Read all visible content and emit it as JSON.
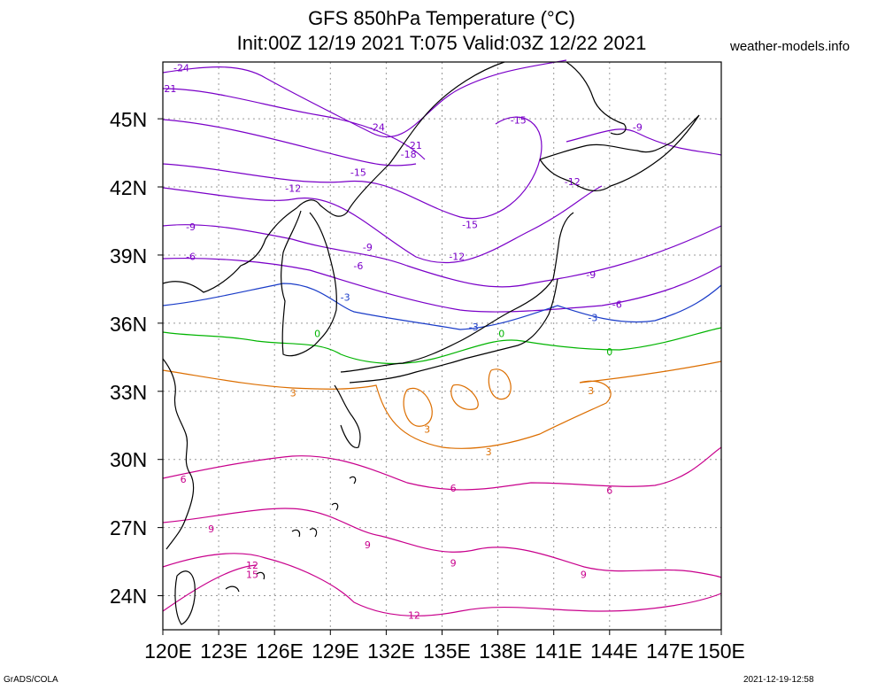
{
  "header": {
    "title_line1": "GFS 850hPa Temperature (°C)",
    "title_line2": "Init:00Z 12/19 2021 T:075 Valid:03Z 12/22 2021",
    "site": "weather-models.info"
  },
  "map": {
    "lat_labels": [
      "45N",
      "42N",
      "39N",
      "36N",
      "33N",
      "30N",
      "27N",
      "24N"
    ],
    "lon_labels": [
      "120E",
      "123E",
      "126E",
      "129E",
      "132E",
      "135E",
      "138E",
      "141E",
      "144E",
      "147E",
      "150E"
    ],
    "lat_range": [
      22.5,
      47.5
    ],
    "lon_range": [
      120,
      150
    ],
    "grid": "dotted"
  },
  "contour_labels": [
    {
      "text": "-24",
      "lon": 121.0,
      "lat": 47.2,
      "color": "#7a00c8"
    },
    {
      "text": "21",
      "lon": 120.4,
      "lat": 46.3,
      "color": "#7a00c8"
    },
    {
      "text": "-24",
      "lon": 131.5,
      "lat": 44.6,
      "color": "#7a00c8"
    },
    {
      "text": "-15",
      "lon": 139.1,
      "lat": 44.9,
      "color": "#7a00c8"
    },
    {
      "text": "-9",
      "lon": 145.5,
      "lat": 44.6,
      "color": "#7a00c8"
    },
    {
      "text": "-21",
      "lon": 133.5,
      "lat": 43.8,
      "color": "#7a00c8"
    },
    {
      "text": "-18",
      "lon": 133.2,
      "lat": 43.4,
      "color": "#7a00c8"
    },
    {
      "text": "-15",
      "lon": 130.5,
      "lat": 42.6,
      "color": "#7a00c8"
    },
    {
      "text": "-12",
      "lon": 127.0,
      "lat": 41.9,
      "color": "#7a00c8"
    },
    {
      "text": "-12",
      "lon": 142.0,
      "lat": 42.2,
      "color": "#7a00c8"
    },
    {
      "text": "-15",
      "lon": 136.5,
      "lat": 40.3,
      "color": "#7a00c8"
    },
    {
      "text": "-9",
      "lon": 121.5,
      "lat": 40.2,
      "color": "#7a00c8"
    },
    {
      "text": "-9",
      "lon": 131.0,
      "lat": 39.3,
      "color": "#7a00c8"
    },
    {
      "text": "-12",
      "lon": 135.8,
      "lat": 38.9,
      "color": "#7a00c8"
    },
    {
      "text": "-6",
      "lon": 121.5,
      "lat": 38.9,
      "color": "#7a00c8"
    },
    {
      "text": "-6",
      "lon": 130.5,
      "lat": 38.5,
      "color": "#7a00c8"
    },
    {
      "text": "-9",
      "lon": 143.0,
      "lat": 38.1,
      "color": "#7a00c8"
    },
    {
      "text": "-3",
      "lon": 129.8,
      "lat": 37.1,
      "color": "#1a3cc8"
    },
    {
      "text": "-6",
      "lon": 144.4,
      "lat": 36.8,
      "color": "#7a00c8"
    },
    {
      "text": "-3",
      "lon": 143.1,
      "lat": 36.2,
      "color": "#1a3cc8"
    },
    {
      "text": "-3",
      "lon": 136.7,
      "lat": 35.8,
      "color": "#1a3cc8"
    },
    {
      "text": "0",
      "lon": 128.3,
      "lat": 35.5,
      "color": "#00b400"
    },
    {
      "text": "0",
      "lon": 138.2,
      "lat": 35.5,
      "color": "#00b400"
    },
    {
      "text": "0",
      "lon": 144.0,
      "lat": 34.7,
      "color": "#00b400"
    },
    {
      "text": "3",
      "lon": 127.0,
      "lat": 32.9,
      "color": "#dc6e00"
    },
    {
      "text": "3",
      "lon": 143.0,
      "lat": 33.0,
      "color": "#dc6e00"
    },
    {
      "text": "3",
      "lon": 134.2,
      "lat": 31.3,
      "color": "#dc6e00"
    },
    {
      "text": "3",
      "lon": 137.5,
      "lat": 30.3,
      "color": "#dc6e00"
    },
    {
      "text": "6",
      "lon": 121.1,
      "lat": 29.1,
      "color": "#c8008c"
    },
    {
      "text": "6",
      "lon": 135.6,
      "lat": 28.7,
      "color": "#c8008c"
    },
    {
      "text": "6",
      "lon": 144.0,
      "lat": 28.6,
      "color": "#c8008c"
    },
    {
      "text": "9",
      "lon": 122.6,
      "lat": 26.9,
      "color": "#c8008c"
    },
    {
      "text": "9",
      "lon": 131.0,
      "lat": 26.2,
      "color": "#c8008c"
    },
    {
      "text": "9",
      "lon": 135.6,
      "lat": 25.4,
      "color": "#c8008c"
    },
    {
      "text": "9",
      "lon": 142.6,
      "lat": 24.9,
      "color": "#c8008c"
    },
    {
      "text": "12",
      "lon": 124.8,
      "lat": 25.3,
      "color": "#c8008c"
    },
    {
      "text": "15",
      "lon": 124.8,
      "lat": 24.9,
      "color": "#c8008c"
    },
    {
      "text": "12",
      "lon": 133.5,
      "lat": 23.1,
      "color": "#c8008c"
    }
  ],
  "footer": {
    "left": "GrADS/COLA",
    "right": "2021-12-19-12:58"
  },
  "colors": {
    "cold": "#7a00c8",
    "minus3": "#1a3cc8",
    "zero": "#00b400",
    "plus3": "#dc6e00",
    "warm": "#c8008c",
    "coast": "#000000"
  }
}
